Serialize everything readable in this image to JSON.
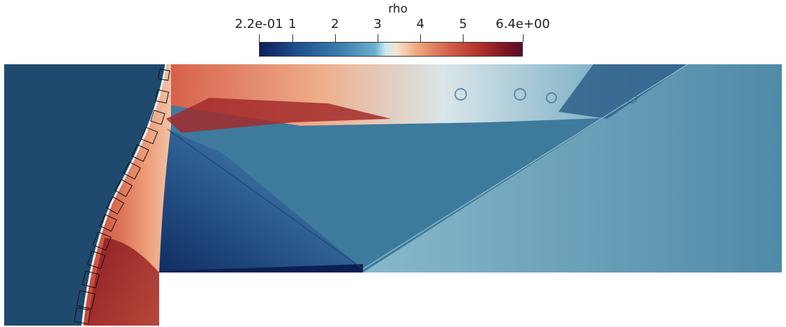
{
  "colorbar": {
    "title": "rho",
    "ticks": [
      {
        "label": "2.2e-01",
        "value": 0.22
      },
      {
        "label": "1",
        "value": 1
      },
      {
        "label": "2",
        "value": 2
      },
      {
        "label": "3",
        "value": 3
      },
      {
        "label": "4",
        "value": 4
      },
      {
        "label": "5",
        "value": 5
      },
      {
        "label": "6.4e+00",
        "value": 6.4
      }
    ],
    "range": [
      0.22,
      6.4
    ],
    "colormap": [
      "#0e1e5c",
      "#1f4f8e",
      "#3a7fae",
      "#6cb0cc",
      "#f6e4cf",
      "#d3604a",
      "#b1312c",
      "#5b0d2e"
    ]
  }
}
